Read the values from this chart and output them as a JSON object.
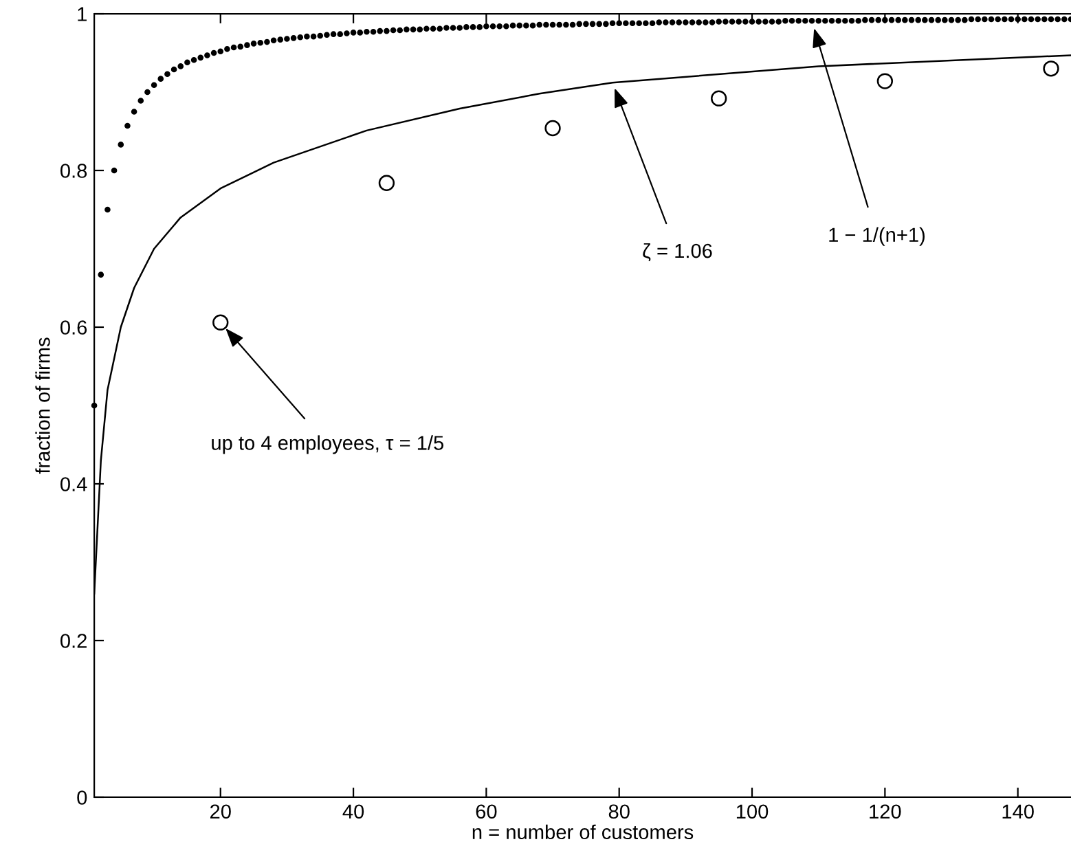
{
  "chart_data": {
    "type": "line",
    "xlabel": "n = number of customers",
    "ylabel": "fraction of firms",
    "xlim": [
      1,
      148
    ],
    "ylim": [
      0,
      1
    ],
    "xticks": [
      20,
      40,
      60,
      80,
      100,
      120,
      140
    ],
    "yticks": [
      0,
      0.2,
      0.4,
      0.6,
      0.8,
      1
    ],
    "grid": false,
    "series": [
      {
        "type": "scatter",
        "marker": "circle",
        "color": "#000000",
        "x": [
          1,
          2,
          3,
          4,
          5,
          6,
          7,
          8,
          9,
          10,
          11,
          12,
          13,
          14,
          15,
          16,
          17,
          18,
          19,
          20,
          21,
          22,
          23,
          24,
          25,
          26,
          27,
          28,
          29,
          30,
          31,
          32,
          33,
          34,
          35,
          36,
          37,
          38,
          39,
          40,
          41,
          42,
          43,
          44,
          45,
          46,
          47,
          48,
          49,
          50,
          51,
          52,
          53,
          54,
          55,
          56,
          57,
          58,
          59,
          60,
          61,
          62,
          63,
          64,
          65,
          66,
          67,
          68,
          69,
          70,
          71,
          72,
          73,
          74,
          75,
          76,
          77,
          78,
          79,
          80,
          81,
          82,
          83,
          84,
          85,
          86,
          87,
          88,
          89,
          90,
          91,
          92,
          93,
          94,
          95,
          96,
          97,
          98,
          99,
          100,
          101,
          102,
          103,
          104,
          105,
          106,
          107,
          108,
          109,
          110,
          111,
          112,
          113,
          114,
          115,
          116,
          117,
          118,
          119,
          120,
          121,
          122,
          123,
          124,
          125,
          126,
          127,
          128,
          129,
          130,
          131,
          132,
          133,
          134,
          135,
          136,
          137,
          138,
          139,
          140,
          141,
          142,
          143,
          144,
          145,
          146,
          147,
          148
        ],
        "values": [
          0.5,
          0.667,
          0.75,
          0.8,
          0.833,
          0.857,
          0.875,
          0.889,
          0.9,
          0.909,
          0.917,
          0.923,
          0.929,
          0.933,
          0.938,
          0.941,
          0.944,
          0.947,
          0.95,
          0.952,
          0.955,
          0.957,
          0.958,
          0.96,
          0.962,
          0.963,
          0.964,
          0.966,
          0.967,
          0.968,
          0.969,
          0.97,
          0.971,
          0.971,
          0.972,
          0.973,
          0.974,
          0.974,
          0.975,
          0.976,
          0.976,
          0.977,
          0.977,
          0.978,
          0.978,
          0.979,
          0.979,
          0.98,
          0.98,
          0.98,
          0.981,
          0.981,
          0.981,
          0.982,
          0.982,
          0.982,
          0.983,
          0.983,
          0.983,
          0.984,
          0.984,
          0.984,
          0.984,
          0.985,
          0.985,
          0.985,
          0.985,
          0.986,
          0.986,
          0.986,
          0.986,
          0.986,
          0.986,
          0.987,
          0.987,
          0.987,
          0.987,
          0.987,
          0.988,
          0.988,
          0.988,
          0.988,
          0.988,
          0.988,
          0.988,
          0.989,
          0.989,
          0.989,
          0.989,
          0.989,
          0.989,
          0.989,
          0.989,
          0.989,
          0.99,
          0.99,
          0.99,
          0.99,
          0.99,
          0.99,
          0.99,
          0.99,
          0.99,
          0.99,
          0.991,
          0.991,
          0.991,
          0.991,
          0.991,
          0.991,
          0.991,
          0.991,
          0.991,
          0.991,
          0.991,
          0.991,
          0.992,
          0.992,
          0.992,
          0.992,
          0.992,
          0.992,
          0.992,
          0.992,
          0.992,
          0.992,
          0.992,
          0.992,
          0.992,
          0.992,
          0.992,
          0.992,
          0.993,
          0.993,
          0.993,
          0.993,
          0.993,
          0.993,
          0.993,
          0.993,
          0.993,
          0.993,
          0.993,
          0.993,
          0.993,
          0.993,
          0.993,
          0.993
        ]
      },
      {
        "marker": "none",
        "line_style": "solid",
        "color": "#000000",
        "x": [
          1,
          2,
          3,
          5,
          7,
          10,
          14,
          20,
          28,
          42,
          56,
          68,
          79,
          110,
          148
        ],
        "values": [
          0.26,
          0.43,
          0.52,
          0.6,
          0.65,
          0.7,
          0.74,
          0.777,
          0.81,
          0.851,
          0.879,
          0.898,
          0.912,
          0.933,
          0.947
        ]
      },
      {
        "type": "scatter",
        "marker": "circle",
        "color": "#000000",
        "x": [
          20,
          45,
          70,
          95,
          120,
          145
        ],
        "values": [
          0.606,
          0.784,
          0.854,
          0.892,
          0.914,
          0.93
        ]
      }
    ],
    "annotations": [
      {
        "text": "up to 4 employees, τ = 1/5",
        "x": 20,
        "y": 0.606
      },
      {
        "text": "ζ = 1.06",
        "x": 79,
        "y": 0.912
      },
      {
        "text": "1 − 1/(n+1)",
        "x": 109,
        "y": 0.991
      }
    ]
  }
}
